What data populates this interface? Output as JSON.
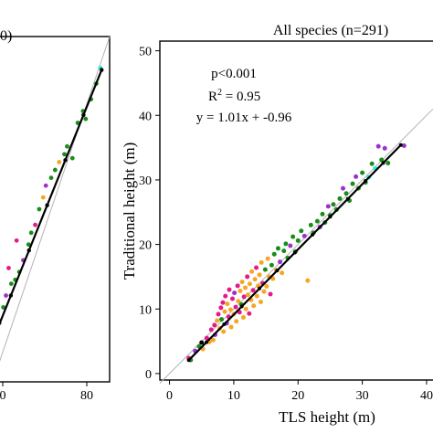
{
  "chart_data": [
    {
      "type": "scatter",
      "title": "0)",
      "xlim": [
        0,
        88
      ],
      "ylim": [
        0,
        88
      ],
      "x_ticks": [
        "0",
        "80"
      ],
      "colors": {
        "green": "#1a8c1a",
        "purple": "#9933cc",
        "orange": "#f5a623",
        "magenta": "#e6198a",
        "cyan": "#33e6e6",
        "fit": "#000000",
        "one_to_one": "#b3b3b3"
      },
      "points": [
        {
          "x": 1,
          "y": 11,
          "c": "green"
        },
        {
          "x": 3,
          "y": 14,
          "c": "green"
        },
        {
          "x": 4,
          "y": 16,
          "c": "purple"
        },
        {
          "x": 5,
          "y": 15,
          "c": "green"
        },
        {
          "x": 8,
          "y": 19,
          "c": "green"
        },
        {
          "x": 10,
          "y": 22,
          "c": "purple"
        },
        {
          "x": 14,
          "y": 25,
          "c": "green"
        },
        {
          "x": 17,
          "y": 26,
          "c": "green"
        },
        {
          "x": 20,
          "y": 28,
          "c": "green"
        },
        {
          "x": 23,
          "y": 31,
          "c": "purple"
        },
        {
          "x": 27,
          "y": 35,
          "c": "green"
        },
        {
          "x": 29,
          "y": 38,
          "c": "green"
        },
        {
          "x": 32,
          "y": 40,
          "c": "magenta"
        },
        {
          "x": 35,
          "y": 44,
          "c": "green"
        },
        {
          "x": 38,
          "y": 47,
          "c": "orange"
        },
        {
          "x": 40,
          "y": 50,
          "c": "purple"
        },
        {
          "x": 44,
          "y": 52,
          "c": "green"
        },
        {
          "x": 47,
          "y": 54,
          "c": "green"
        },
        {
          "x": 50,
          "y": 56,
          "c": "orange"
        },
        {
          "x": 54,
          "y": 58,
          "c": "green"
        },
        {
          "x": 56,
          "y": 60,
          "c": "green"
        },
        {
          "x": 60,
          "y": 57,
          "c": "green"
        },
        {
          "x": 64,
          "y": 66,
          "c": "green"
        },
        {
          "x": 68,
          "y": 69,
          "c": "green"
        },
        {
          "x": 70,
          "y": 67,
          "c": "green"
        },
        {
          "x": 74,
          "y": 72,
          "c": "green"
        },
        {
          "x": 78,
          "y": 76,
          "c": "green"
        },
        {
          "x": 81,
          "y": 80,
          "c": "cyan"
        },
        {
          "x": 18,
          "y": 36,
          "c": "magenta"
        },
        {
          "x": 12,
          "y": 29,
          "c": "magenta"
        }
      ],
      "fit_line": {
        "x": [
          0,
          82
        ],
        "y": [
          10.5,
          79.5
        ]
      },
      "identity_line": {
        "x": [
          0,
          88
        ],
        "y": [
          0,
          88
        ]
      }
    },
    {
      "type": "scatter",
      "title": "All species (n=291)",
      "xlabel": "TLS height (m)",
      "ylabel": "Traditional height (m)",
      "xlim": [
        -1.5,
        41
      ],
      "ylim": [
        -1,
        51.5
      ],
      "x_ticks": [
        "0",
        "10",
        "20",
        "30",
        "40"
      ],
      "y_ticks": [
        "0",
        "10",
        "20",
        "30",
        "40",
        "50"
      ],
      "annotations": [
        "p<0.001",
        "R",
        "2",
        " = 0.95",
        "y = 1.01x + -0.96"
      ],
      "colors": {
        "green": "#1a8c1a",
        "purple": "#9933cc",
        "orange": "#f5a623",
        "magenta": "#e6198a",
        "cyan": "#33e6e6",
        "black": "#000000",
        "fit": "#000000",
        "one_to_one": "#b3b3b3"
      },
      "points": [
        {
          "x": 3.0,
          "y": 2.4,
          "c": "magenta"
        },
        {
          "x": 3.3,
          "y": 2.1,
          "c": "green"
        },
        {
          "x": 4.0,
          "y": 3.5,
          "c": "purple"
        },
        {
          "x": 4.6,
          "y": 4.2,
          "c": "green"
        },
        {
          "x": 5.0,
          "y": 4.8,
          "c": "black"
        },
        {
          "x": 5.2,
          "y": 3.8,
          "c": "orange"
        },
        {
          "x": 5.8,
          "y": 5.5,
          "c": "magenta"
        },
        {
          "x": 6.2,
          "y": 4.9,
          "c": "orange"
        },
        {
          "x": 6.5,
          "y": 6.8,
          "c": "magenta"
        },
        {
          "x": 6.8,
          "y": 5.2,
          "c": "orange"
        },
        {
          "x": 7.0,
          "y": 7.5,
          "c": "magenta"
        },
        {
          "x": 7.1,
          "y": 6.0,
          "c": "purple"
        },
        {
          "x": 7.4,
          "y": 8.2,
          "c": "orange"
        },
        {
          "x": 7.6,
          "y": 9.2,
          "c": "magenta"
        },
        {
          "x": 7.8,
          "y": 7.0,
          "c": "orange"
        },
        {
          "x": 8.0,
          "y": 10.2,
          "c": "magenta"
        },
        {
          "x": 8.1,
          "y": 8.4,
          "c": "green"
        },
        {
          "x": 8.3,
          "y": 11.0,
          "c": "magenta"
        },
        {
          "x": 8.4,
          "y": 6.5,
          "c": "orange"
        },
        {
          "x": 8.6,
          "y": 9.6,
          "c": "orange"
        },
        {
          "x": 8.7,
          "y": 12.0,
          "c": "magenta"
        },
        {
          "x": 8.9,
          "y": 7.8,
          "c": "purple"
        },
        {
          "x": 9.0,
          "y": 10.8,
          "c": "orange"
        },
        {
          "x": 9.2,
          "y": 8.8,
          "c": "magenta"
        },
        {
          "x": 9.3,
          "y": 13.0,
          "c": "magenta"
        },
        {
          "x": 9.5,
          "y": 9.9,
          "c": "orange"
        },
        {
          "x": 9.6,
          "y": 7.2,
          "c": "orange"
        },
        {
          "x": 9.8,
          "y": 11.6,
          "c": "magenta"
        },
        {
          "x": 10.0,
          "y": 9.2,
          "c": "orange"
        },
        {
          "x": 10.1,
          "y": 12.5,
          "c": "purple"
        },
        {
          "x": 10.3,
          "y": 10.3,
          "c": "magenta"
        },
        {
          "x": 10.4,
          "y": 8.1,
          "c": "orange"
        },
        {
          "x": 10.6,
          "y": 13.6,
          "c": "magenta"
        },
        {
          "x": 10.7,
          "y": 11.2,
          "c": "orange"
        },
        {
          "x": 10.9,
          "y": 9.5,
          "c": "magenta"
        },
        {
          "x": 11.0,
          "y": 12.8,
          "c": "orange"
        },
        {
          "x": 11.2,
          "y": 10.7,
          "c": "green"
        },
        {
          "x": 11.3,
          "y": 14.2,
          "c": "orange"
        },
        {
          "x": 11.5,
          "y": 8.7,
          "c": "orange"
        },
        {
          "x": 11.6,
          "y": 11.9,
          "c": "magenta"
        },
        {
          "x": 11.8,
          "y": 13.3,
          "c": "orange"
        },
        {
          "x": 11.9,
          "y": 10.0,
          "c": "orange"
        },
        {
          "x": 12.1,
          "y": 15.0,
          "c": "magenta"
        },
        {
          "x": 12.2,
          "y": 12.2,
          "c": "orange"
        },
        {
          "x": 12.4,
          "y": 9.3,
          "c": "magenta"
        },
        {
          "x": 12.5,
          "y": 13.9,
          "c": "orange"
        },
        {
          "x": 12.7,
          "y": 11.4,
          "c": "orange"
        },
        {
          "x": 12.8,
          "y": 15.8,
          "c": "orange"
        },
        {
          "x": 13.0,
          "y": 12.9,
          "c": "magenta"
        },
        {
          "x": 13.1,
          "y": 10.5,
          "c": "orange"
        },
        {
          "x": 13.3,
          "y": 14.6,
          "c": "orange"
        },
        {
          "x": 13.5,
          "y": 16.4,
          "c": "magenta"
        },
        {
          "x": 13.6,
          "y": 12.0,
          "c": "orange"
        },
        {
          "x": 13.8,
          "y": 13.6,
          "c": "orange"
        },
        {
          "x": 14.0,
          "y": 15.3,
          "c": "orange"
        },
        {
          "x": 14.2,
          "y": 11.1,
          "c": "orange"
        },
        {
          "x": 14.3,
          "y": 17.2,
          "c": "orange"
        },
        {
          "x": 14.5,
          "y": 14.0,
          "c": "magenta"
        },
        {
          "x": 14.7,
          "y": 12.7,
          "c": "orange"
        },
        {
          "x": 14.9,
          "y": 16.1,
          "c": "green"
        },
        {
          "x": 15.1,
          "y": 13.5,
          "c": "orange"
        },
        {
          "x": 15.3,
          "y": 17.8,
          "c": "orange"
        },
        {
          "x": 15.5,
          "y": 15.0,
          "c": "orange"
        },
        {
          "x": 15.7,
          "y": 12.3,
          "c": "magenta"
        },
        {
          "x": 15.9,
          "y": 16.8,
          "c": "green"
        },
        {
          "x": 16.1,
          "y": 14.7,
          "c": "orange"
        },
        {
          "x": 16.3,
          "y": 18.5,
          "c": "green"
        },
        {
          "x": 16.6,
          "y": 16.0,
          "c": "orange"
        },
        {
          "x": 16.9,
          "y": 19.4,
          "c": "green"
        },
        {
          "x": 17.2,
          "y": 17.3,
          "c": "purple"
        },
        {
          "x": 17.5,
          "y": 15.6,
          "c": "orange"
        },
        {
          "x": 17.8,
          "y": 19.0,
          "c": "green"
        },
        {
          "x": 18.1,
          "y": 20.1,
          "c": "green"
        },
        {
          "x": 18.4,
          "y": 17.9,
          "c": "green"
        },
        {
          "x": 18.8,
          "y": 19.8,
          "c": "purple"
        },
        {
          "x": 19.2,
          "y": 21.2,
          "c": "green"
        },
        {
          "x": 19.6,
          "y": 18.9,
          "c": "green"
        },
        {
          "x": 20.0,
          "y": 20.6,
          "c": "green"
        },
        {
          "x": 20.5,
          "y": 22.1,
          "c": "green"
        },
        {
          "x": 21.0,
          "y": 21.3,
          "c": "purple"
        },
        {
          "x": 21.5,
          "y": 14.4,
          "c": "orange"
        },
        {
          "x": 22.0,
          "y": 23.0,
          "c": "green"
        },
        {
          "x": 22.4,
          "y": 21.8,
          "c": "green"
        },
        {
          "x": 23.0,
          "y": 23.6,
          "c": "green"
        },
        {
          "x": 23.4,
          "y": 22.7,
          "c": "purple"
        },
        {
          "x": 23.8,
          "y": 24.7,
          "c": "green"
        },
        {
          "x": 24.2,
          "y": 23.4,
          "c": "green"
        },
        {
          "x": 24.7,
          "y": 25.9,
          "c": "purple"
        },
        {
          "x": 25.0,
          "y": 24.5,
          "c": "green"
        },
        {
          "x": 25.5,
          "y": 26.2,
          "c": "green"
        },
        {
          "x": 26.0,
          "y": 25.4,
          "c": "green"
        },
        {
          "x": 26.5,
          "y": 27.1,
          "c": "green"
        },
        {
          "x": 27.0,
          "y": 28.7,
          "c": "purple"
        },
        {
          "x": 27.5,
          "y": 27.9,
          "c": "green"
        },
        {
          "x": 28.0,
          "y": 26.8,
          "c": "green"
        },
        {
          "x": 28.5,
          "y": 29.4,
          "c": "green"
        },
        {
          "x": 29.0,
          "y": 30.5,
          "c": "purple"
        },
        {
          "x": 29.4,
          "y": 28.7,
          "c": "green"
        },
        {
          "x": 30.0,
          "y": 31.1,
          "c": "green"
        },
        {
          "x": 30.5,
          "y": 29.6,
          "c": "green"
        },
        {
          "x": 31.0,
          "y": 30.4,
          "c": "cyan"
        },
        {
          "x": 31.5,
          "y": 32.5,
          "c": "green"
        },
        {
          "x": 32.0,
          "y": 31.8,
          "c": "cyan"
        },
        {
          "x": 32.5,
          "y": 35.2,
          "c": "purple"
        },
        {
          "x": 33.0,
          "y": 33.1,
          "c": "green"
        },
        {
          "x": 33.5,
          "y": 34.9,
          "c": "purple"
        },
        {
          "x": 34.0,
          "y": 32.6,
          "c": "green"
        },
        {
          "x": 36.5,
          "y": 35.3,
          "c": "purple"
        }
      ],
      "fit_line": {
        "x": [
          3,
          36
        ],
        "y": [
          2.07,
          35.4
        ]
      },
      "identity_line": {
        "x": [
          -1.5,
          41
        ],
        "y": [
          -1.5,
          41
        ]
      }
    }
  ]
}
